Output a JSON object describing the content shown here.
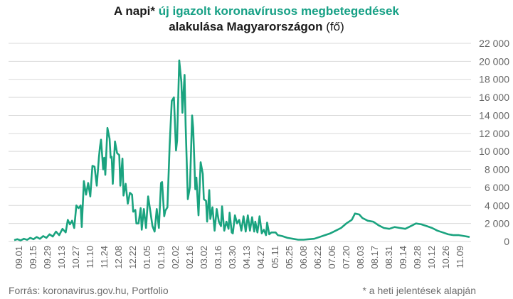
{
  "colors": {
    "accent": "#16a085",
    "line": "#1aa37f",
    "grid": "#d9d9d9",
    "text": "#666666"
  },
  "title": {
    "part1": "A napi*",
    "part2": "új igazolt koronavírusos megbetegedések",
    "part3": "alakulása Magyarországon",
    "part4": "(fő)"
  },
  "footer": {
    "source": "Forrás: koronavirus.gov.hu, Portfolio",
    "note": "* a heti jelentések alapján"
  },
  "chart_data": {
    "type": "line",
    "title": "A napi* új igazolt koronavírusos megbetegedések alakulása Magyarországon (fő)",
    "ylim": [
      0,
      22000
    ],
    "y_ticks": [
      "0",
      "2 000",
      "4 000",
      "6 000",
      "8 000",
      "10 000",
      "12 000",
      "14 000",
      "16 000",
      "18 000",
      "20 000",
      "22 000"
    ],
    "y_tick_values": [
      0,
      2000,
      4000,
      6000,
      8000,
      10000,
      12000,
      14000,
      16000,
      18000,
      20000,
      22000
    ],
    "x_tick_labels": [
      "09.01",
      "09.15",
      "09.29",
      "10.13",
      "10.27",
      "11.10",
      "11.24",
      "12.08",
      "12.22",
      "01.05",
      "01.19",
      "02.02",
      "02.16",
      "03.02",
      "03.16",
      "03.30",
      "04.13",
      "04.27",
      "05.11",
      "05.25",
      "06.08",
      "06.22",
      "07.06",
      "07.20",
      "08.03",
      "08.17",
      "08.31",
      "09.14",
      "09.28",
      "10.12",
      "10.26",
      "11.09"
    ],
    "grid": "horizontal",
    "series": [
      {
        "values": [
          [
            0,
            150
          ],
          [
            3,
            250
          ],
          [
            6,
            120
          ],
          [
            9,
            300
          ],
          [
            12,
            180
          ],
          [
            15,
            400
          ],
          [
            18,
            250
          ],
          [
            21,
            500
          ],
          [
            24,
            300
          ],
          [
            27,
            600
          ],
          [
            30,
            400
          ],
          [
            33,
            800
          ],
          [
            36,
            550
          ],
          [
            39,
            1100
          ],
          [
            42,
            700
          ],
          [
            45,
            1400
          ],
          [
            48,
            1000
          ],
          [
            50,
            2400
          ],
          [
            52,
            1900
          ],
          [
            54,
            2300
          ],
          [
            56,
            1500
          ],
          [
            58,
            4000
          ],
          [
            60,
            3700
          ],
          [
            62,
            4000
          ],
          [
            63,
            1600
          ],
          [
            65,
            6700
          ],
          [
            67,
            5200
          ],
          [
            69,
            6500
          ],
          [
            71,
            5000
          ],
          [
            73,
            8400
          ],
          [
            75,
            8300
          ],
          [
            77,
            6200
          ],
          [
            79,
            9300
          ],
          [
            80,
            10500
          ],
          [
            81,
            11300
          ],
          [
            83,
            8000
          ],
          [
            84,
            9300
          ],
          [
            85,
            7400
          ],
          [
            87,
            12600
          ],
          [
            89,
            11400
          ],
          [
            90,
            9300
          ],
          [
            91,
            9400
          ],
          [
            92,
            6400
          ],
          [
            94,
            11100
          ],
          [
            96,
            9800
          ],
          [
            98,
            9600
          ],
          [
            99,
            6200
          ],
          [
            101,
            9200
          ],
          [
            102,
            5100
          ],
          [
            104,
            6400
          ],
          [
            106,
            4200
          ],
          [
            108,
            5400
          ],
          [
            110,
            5200
          ],
          [
            111,
            3300
          ],
          [
            113,
            3500
          ],
          [
            114,
            2000
          ],
          [
            116,
            2000
          ],
          [
            118,
            3700
          ],
          [
            119,
            1300
          ],
          [
            121,
            3600
          ],
          [
            123,
            1500
          ],
          [
            125,
            5000
          ],
          [
            127,
            3400
          ],
          [
            129,
            1700
          ],
          [
            131,
            1100
          ],
          [
            133,
            3600
          ],
          [
            135,
            1500
          ],
          [
            137,
            6500
          ],
          [
            138,
            6600
          ],
          [
            140,
            2800
          ],
          [
            141,
            3400
          ],
          [
            143,
            3800
          ],
          [
            145,
            10600
          ],
          [
            147,
            15600
          ],
          [
            149,
            16000
          ],
          [
            151,
            10100
          ],
          [
            152,
            11200
          ],
          [
            154,
            20100
          ],
          [
            156,
            17700
          ],
          [
            157,
            14300
          ],
          [
            159,
            18500
          ],
          [
            160,
            12900
          ],
          [
            162,
            4700
          ],
          [
            164,
            6100
          ],
          [
            166,
            14000
          ],
          [
            167,
            12600
          ],
          [
            169,
            5800
          ],
          [
            170,
            7100
          ],
          [
            172,
            2900
          ],
          [
            174,
            8800
          ],
          [
            176,
            7500
          ],
          [
            177,
            4700
          ],
          [
            179,
            4500
          ],
          [
            180,
            2200
          ],
          [
            182,
            5700
          ],
          [
            183,
            2500
          ],
          [
            185,
            3800
          ],
          [
            187,
            1200
          ],
          [
            189,
            3600
          ],
          [
            191,
            2200
          ],
          [
            193,
            1700
          ],
          [
            194,
            3900
          ],
          [
            196,
            1200
          ],
          [
            198,
            2200
          ],
          [
            200,
            1400
          ],
          [
            201,
            3200
          ],
          [
            203,
            1000
          ],
          [
            204,
            900
          ],
          [
            206,
            2900
          ],
          [
            208,
            2000
          ],
          [
            210,
            2400
          ],
          [
            212,
            1200
          ],
          [
            214,
            2800
          ],
          [
            216,
            1100
          ],
          [
            218,
            2900
          ],
          [
            220,
            1200
          ],
          [
            222,
            2700
          ],
          [
            224,
            1100
          ],
          [
            225,
            2200
          ],
          [
            227,
            1000
          ],
          [
            229,
            2800
          ],
          [
            231,
            900
          ],
          [
            233,
            1300
          ],
          [
            235,
            700
          ],
          [
            236,
            2100
          ],
          [
            238,
            800
          ],
          [
            240,
            1000
          ],
          [
            244,
            1000
          ],
          [
            246,
            700
          ],
          [
            250,
            600
          ],
          [
            255,
            400
          ],
          [
            260,
            300
          ],
          [
            265,
            200
          ],
          [
            270,
            200
          ],
          [
            275,
            250
          ],
          [
            280,
            300
          ],
          [
            285,
            500
          ],
          [
            290,
            700
          ],
          [
            295,
            900
          ],
          [
            300,
            1200
          ],
          [
            305,
            1500
          ],
          [
            310,
            2000
          ],
          [
            315,
            2400
          ],
          [
            318,
            3100
          ],
          [
            322,
            3000
          ],
          [
            325,
            2600
          ],
          [
            330,
            2300
          ],
          [
            335,
            2200
          ],
          [
            340,
            1800
          ],
          [
            345,
            1500
          ],
          [
            350,
            1400
          ],
          [
            355,
            1600
          ],
          [
            360,
            1500
          ],
          [
            365,
            1400
          ],
          [
            370,
            1700
          ],
          [
            375,
            2000
          ],
          [
            380,
            1900
          ],
          [
            385,
            1700
          ],
          [
            390,
            1500
          ],
          [
            395,
            1200
          ],
          [
            400,
            1000
          ],
          [
            405,
            800
          ],
          [
            410,
            700
          ],
          [
            415,
            700
          ],
          [
            420,
            600
          ],
          [
            425,
            500
          ]
        ]
      }
    ]
  }
}
